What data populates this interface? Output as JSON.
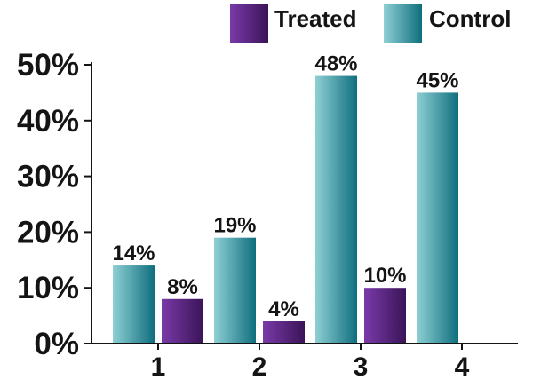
{
  "chart_data": {
    "type": "bar",
    "categories": [
      "1",
      "2",
      "3",
      "4"
    ],
    "series": [
      {
        "name": "Control",
        "values": [
          14,
          19,
          48,
          45
        ],
        "labels": [
          "14%",
          "19%",
          "48%",
          "45%"
        ]
      },
      {
        "name": "Treated",
        "values": [
          8,
          4,
          10,
          null
        ],
        "labels": [
          "8%",
          "4%",
          "10%",
          ""
        ]
      }
    ],
    "title": "",
    "xlabel": "",
    "ylabel": "",
    "ylim": [
      0,
      50
    ],
    "yticks": [
      0,
      10,
      20,
      30,
      40,
      50
    ],
    "ytick_labels": [
      "0%",
      "10%",
      "20%",
      "30%",
      "40%",
      "50%"
    ],
    "grid": false,
    "legend": {
      "placement": "top-right",
      "entries": [
        "Treated",
        "Control"
      ]
    },
    "colors": {
      "Treated": [
        "#7a3aa8",
        "#3a1458"
      ],
      "Control": [
        "#8ed0d4",
        "#0f6e7e"
      ],
      "axis": "#141414"
    }
  }
}
